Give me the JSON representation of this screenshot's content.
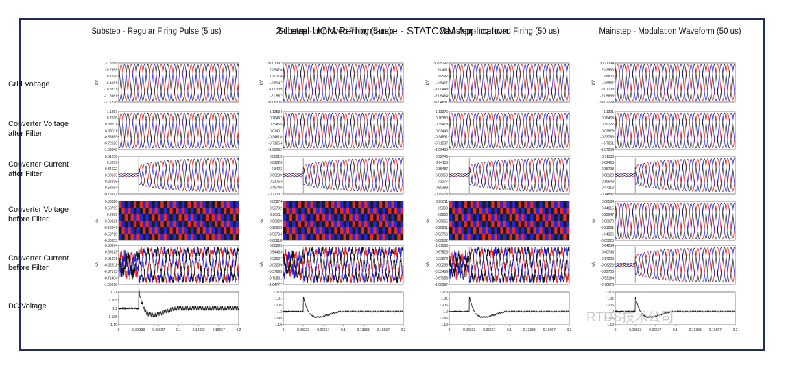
{
  "title": "2-Level UCM Performance - STATCOM Application",
  "columns": [
    "Substep - Regular Firing Pulse (5 us)",
    "Substep - Improved Firing (5 us)",
    "Mainstep - Improved Firing (50 us)",
    "Mainstep - Modulation Waveform (50 us)"
  ],
  "rows": [
    "Grid Voltage",
    "Converter Voltage after Filter",
    "Converter Current after Filter",
    "Converter Voltage before Filter",
    "Converter Current before Filter",
    "DC Voltage"
  ],
  "watermark": "RTDS技术公司",
  "colors": {
    "phase_a": "#e02020",
    "phase_b": "#1a1ad8",
    "phase_c": "#111111",
    "frame": "#1f2f57"
  },
  "chart_data": {
    "type": "line",
    "x_axis": {
      "xlim": [
        0,
        0.2
      ],
      "ticks": [
        "0",
        "0.03333",
        "0.06667",
        "0.1",
        "0.13333",
        "0.16667",
        "0.2"
      ]
    },
    "panels": [
      {
        "row": 0,
        "col": 0,
        "unit": "kV",
        "kind": "sine3",
        "yticks": [
          "31.3788",
          "20.7959",
          "10.1926",
          "-0.4081",
          "-10.8831",
          "-21.5981",
          "-32.1798"
        ]
      },
      {
        "row": 0,
        "col": 1,
        "unit": "kV",
        "kind": "sine3",
        "yticks": [
          "31.07392",
          "20.5476",
          "10.0214",
          "-0.5047",
          "-11.0309",
          "-21.557",
          "-32.08305"
        ]
      },
      {
        "row": 0,
        "col": 2,
        "unit": "kV",
        "kind": "sine3",
        "yticks": [
          "30.95292",
          "20.461",
          "9.9592",
          "-0.5427",
          "-11.0448",
          "-21.5464",
          "-32.04831"
        ]
      },
      {
        "row": 0,
        "col": 3,
        "unit": "kV",
        "kind": "sine3",
        "yticks": [
          "30.71194",
          "20.2563",
          "9.8806",
          "-0.6552",
          "-11.1108",
          "-21.5665",
          "-32.02224"
        ]
      },
      {
        "row": 1,
        "col": 0,
        "unit": "",
        "kind": "sine3",
        "yticks": [
          "1.1387",
          "0.7695",
          "0.38311",
          "0.03011",
          "-0.35389",
          "-0.72629",
          "-1.09848"
        ]
      },
      {
        "row": 1,
        "col": 1,
        "unit": "",
        "kind": "sine3",
        "yticks": [
          "1.13534",
          "0.76497",
          "0.39455",
          "0.02401",
          "-0.34618",
          "-0.71654",
          "-1.08692"
        ]
      },
      {
        "row": 1,
        "col": 2,
        "unit": "",
        "kind": "sine3",
        "yticks": [
          "1.13375",
          "0.76380",
          "0.39423",
          "0.02446",
          "-0.34531",
          "-0.71507",
          "-1.09483"
        ]
      },
      {
        "row": 1,
        "col": 3,
        "unit": "",
        "kind": "sine3",
        "yticks": [
          "1.1321",
          "0.76468",
          "0.39722",
          "0.02978",
          "-0.33766",
          "-0.7051",
          "-1.07254"
        ]
      },
      {
        "row": 2,
        "col": 0,
        "unit": "",
        "kind": "current_step",
        "yticks": [
          "0.81238",
          "0.5209",
          "0.34622",
          "0.08163",
          "-0.22195",
          "-0.52654",
          "-0.75912"
        ]
      },
      {
        "row": 2,
        "col": 1,
        "unit": "",
        "kind": "current_step",
        "yticks": [
          "0.80213",
          "0.62223",
          "0.3423",
          "0.06239",
          "-0.21754",
          "-0.49746",
          "-0.77737"
        ]
      },
      {
        "row": 2,
        "col": 2,
        "unit": "",
        "kind": "current_step",
        "yticks": [
          "0.92746",
          "0.64116",
          "0.35487",
          "0.06059",
          "-0.2177",
          "-0.50399",
          "-0.79028"
        ]
      },
      {
        "row": 2,
        "col": 3,
        "unit": "",
        "kind": "current_step",
        "yticks": [
          "0.91138",
          "0.62468",
          "0.35798",
          "0.08128",
          "-0.19542",
          "-0.47212",
          "-0.74882"
        ]
      },
      {
        "row": 3,
        "col": 0,
        "unit": "kV",
        "kind": "pwm",
        "yticks": [
          "0.80826",
          "0.53759",
          "0.2669",
          "0.00821",
          "-0.26647",
          "-0.53716",
          "-0.80853"
        ]
      },
      {
        "row": 3,
        "col": 1,
        "unit": "kV",
        "kind": "pwm",
        "yticks": [
          "0.80874",
          "0.53792",
          "0.26911",
          "0.00029",
          "-0.26953",
          "-0.53734",
          "-0.80818"
        ]
      },
      {
        "row": 3,
        "col": 2,
        "unit": "kV",
        "kind": "pwm",
        "yticks": [
          "0.80611",
          "0.5398",
          "0.2690",
          "0.00065",
          "-0.26851",
          "-0.53766",
          "-0.80602"
        ]
      },
      {
        "row": 3,
        "col": 3,
        "unit": "kV",
        "kind": "sine3",
        "yticks": [
          "0.66584",
          "0.44615",
          "0.22647",
          "0.00679",
          "-0.21291",
          "-0.4326",
          "-0.65228"
        ]
      },
      {
        "row": 4,
        "col": 0,
        "unit": "kA",
        "kind": "current_noisy",
        "yticks": [
          "0.88874",
          "0.65613",
          "0.31351",
          "-0.02811",
          "-0.37173",
          "-0.71404",
          "-1.05698"
        ]
      },
      {
        "row": 4,
        "col": 1,
        "unit": "kA",
        "kind": "current_noisy",
        "yticks": [
          "0.88299",
          "0.54463",
          "0.32607",
          "-0.03239",
          "-0.37695",
          "-0.70831",
          "-1.04777"
        ]
      },
      {
        "row": 4,
        "col": 2,
        "unit": "kA",
        "kind": "current_noisy",
        "yticks": [
          "1.01166",
          "0.67523",
          "0.33879",
          "0.00235",
          "-0.33409",
          "-0.67053",
          "-1.00697"
        ]
      },
      {
        "row": 4,
        "col": 3,
        "unit": "kA",
        "kind": "current_step",
        "yticks": [
          "0.64234",
          "0.40746",
          "0.17263",
          "-0.06223",
          "-0.29706",
          "-0.53194",
          "-0.76678"
        ]
      },
      {
        "row": 5,
        "col": 0,
        "unit": "",
        "kind": "dc",
        "ylim": [
          1.19,
          1.21
        ],
        "yticks": [
          "1.21",
          "1.205",
          "1.2",
          "1.195",
          "1.19"
        ]
      },
      {
        "row": 5,
        "col": 1,
        "unit": "",
        "kind": "dc",
        "ylim": [
          1.19,
          1.215
        ],
        "yticks": [
          "1.215",
          "1.21",
          "1.205",
          "1.2",
          "1.195",
          "1.19"
        ]
      },
      {
        "row": 5,
        "col": 2,
        "unit": "",
        "kind": "dc",
        "ylim": [
          1.19,
          1.215
        ],
        "yticks": [
          "1.215",
          "1.21",
          "1.205",
          "1.2",
          "1.195",
          "1.19"
        ]
      },
      {
        "row": 5,
        "col": 3,
        "unit": "",
        "kind": "dc",
        "ylim": [
          1.19,
          1.215
        ],
        "yticks": [
          "1.215",
          "1.21",
          "1.205",
          "1.2",
          "1.195",
          "1.19"
        ]
      }
    ]
  }
}
